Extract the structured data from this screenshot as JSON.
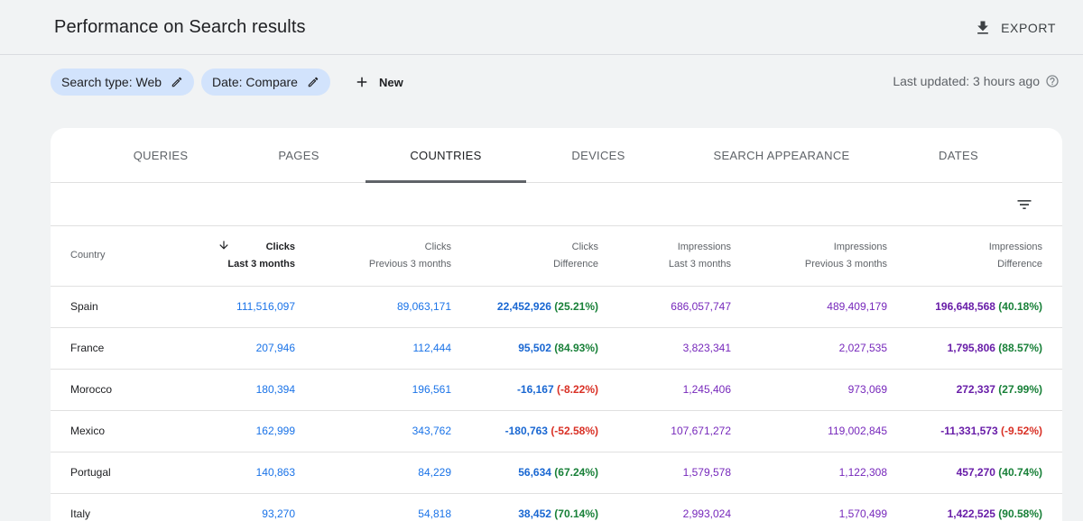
{
  "header": {
    "title": "Performance on Search results",
    "export_label": "EXPORT"
  },
  "filters": {
    "chips": [
      "Search type: Web",
      "Date: Compare"
    ],
    "new_label": "New",
    "last_updated": "Last updated: 3 hours ago"
  },
  "tabs": [
    "QUERIES",
    "PAGES",
    "COUNTRIES",
    "DEVICES",
    "SEARCH APPEARANCE",
    "DATES"
  ],
  "active_tab": "COUNTRIES",
  "table": {
    "headers": [
      {
        "line1": "Country",
        "line2": ""
      },
      {
        "line1": "Clicks",
        "line2": "Last 3 months"
      },
      {
        "line1": "Clicks",
        "line2": "Previous 3 months"
      },
      {
        "line1": "Clicks",
        "line2": "Difference"
      },
      {
        "line1": "Impressions",
        "line2": "Last 3 months"
      },
      {
        "line1": "Impressions",
        "line2": "Previous 3 months"
      },
      {
        "line1": "Impressions",
        "line2": "Difference"
      }
    ],
    "rows": [
      {
        "country": "Spain",
        "clicks_last": "111,516,097",
        "clicks_prev": "89,063,171",
        "clicks_diff": "22,452,926",
        "clicks_pct": "(25.21%)",
        "impr_last": "686,057,747",
        "impr_prev": "489,409,179",
        "impr_diff": "196,648,568",
        "impr_pct": "(40.18%)"
      },
      {
        "country": "France",
        "clicks_last": "207,946",
        "clicks_prev": "112,444",
        "clicks_diff": "95,502",
        "clicks_pct": "(84.93%)",
        "impr_last": "3,823,341",
        "impr_prev": "2,027,535",
        "impr_diff": "1,795,806",
        "impr_pct": "(88.57%)"
      },
      {
        "country": "Morocco",
        "clicks_last": "180,394",
        "clicks_prev": "196,561",
        "clicks_diff": "-16,167",
        "clicks_pct": "(-8.22%)",
        "impr_last": "1,245,406",
        "impr_prev": "973,069",
        "impr_diff": "272,337",
        "impr_pct": "(27.99%)"
      },
      {
        "country": "Mexico",
        "clicks_last": "162,999",
        "clicks_prev": "343,762",
        "clicks_diff": "-180,763",
        "clicks_pct": "(-52.58%)",
        "impr_last": "107,671,272",
        "impr_prev": "119,002,845",
        "impr_diff": "-11,331,573",
        "impr_pct": "(-9.52%)"
      },
      {
        "country": "Portugal",
        "clicks_last": "140,863",
        "clicks_prev": "84,229",
        "clicks_diff": "56,634",
        "clicks_pct": "(67.24%)",
        "impr_last": "1,579,578",
        "impr_prev": "1,122,308",
        "impr_diff": "457,270",
        "impr_pct": "(40.74%)"
      },
      {
        "country": "Italy",
        "clicks_last": "93,270",
        "clicks_prev": "54,818",
        "clicks_diff": "38,452",
        "clicks_pct": "(70.14%)",
        "impr_last": "2,993,024",
        "impr_prev": "1,570,499",
        "impr_diff": "1,422,525",
        "impr_pct": "(90.58%)"
      }
    ]
  },
  "colors": {
    "clicks": "#1a73e8",
    "impressions": "#7627bb",
    "positive": "#188038",
    "negative": "#d93025",
    "chip_bg": "#d2e3fc"
  },
  "icons": {
    "export": "download-icon",
    "edit": "pencil-icon",
    "new": "plus-icon",
    "help": "help-circle-icon",
    "filter": "filter-list-icon",
    "sort": "arrow-down-icon"
  }
}
